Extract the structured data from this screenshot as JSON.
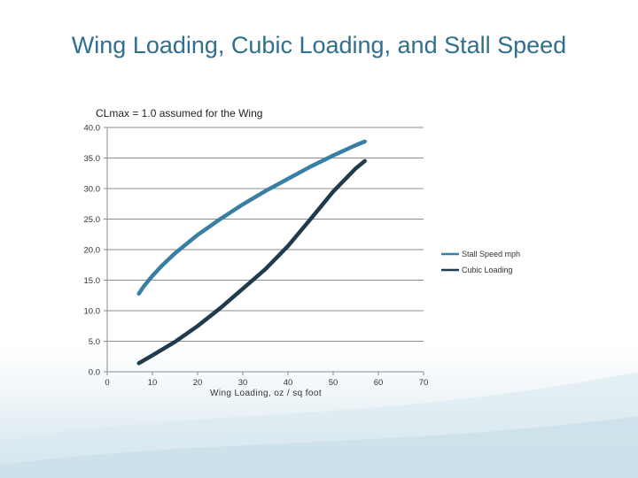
{
  "slide": {
    "title": "Wing Loading, Cubic Loading, and Stall Speed"
  },
  "colors": {
    "title": "#2f6f8f",
    "stall_speed": "#3a7fa3",
    "cubic_loading": "#1f3b4d",
    "grid": "#8c8c8c"
  },
  "chart_data": {
    "type": "line",
    "title": "CLmax = 1.0 assumed for the Wing",
    "xlabel": "Wing Loading,   oz / sq foot",
    "ylabel": "",
    "xlim": [
      0,
      70
    ],
    "ylim": [
      0,
      40
    ],
    "x_ticks": [
      "0",
      "10",
      "20",
      "30",
      "40",
      "50",
      "60",
      "70"
    ],
    "y_ticks": [
      "0.0",
      "5.0",
      "10.0",
      "15.0",
      "20.0",
      "25.0",
      "30.0",
      "35.0",
      "40.0"
    ],
    "grid": true,
    "legend_position": "right",
    "series": [
      {
        "name": "Stall Speed mph",
        "x": [
          7,
          8,
          10,
          12,
          15,
          20,
          25,
          30,
          35,
          40,
          45,
          50,
          55,
          57
        ],
        "values": [
          12.8,
          13.9,
          15.7,
          17.3,
          19.4,
          22.4,
          25.0,
          27.4,
          29.6,
          31.6,
          33.6,
          35.4,
          37.1,
          37.7
        ]
      },
      {
        "name": "Cubic Loading",
        "x": [
          7,
          10,
          15,
          20,
          25,
          30,
          35,
          40,
          45,
          50,
          55,
          57
        ],
        "values": [
          1.4,
          2.7,
          4.9,
          7.5,
          10.4,
          13.6,
          16.8,
          20.6,
          25.0,
          29.5,
          33.3,
          34.5
        ]
      }
    ]
  }
}
